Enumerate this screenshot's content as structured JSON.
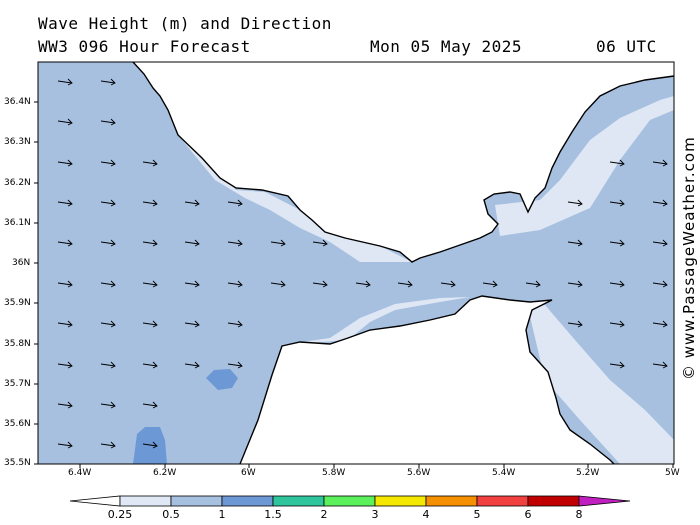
{
  "header": {
    "title": "Wave Height (m) and Direction",
    "model": "WW3 096 Hour Forecast",
    "date": "Mon 05 May 2025",
    "time": "06 UTC"
  },
  "credit": "© www.PassageWeather.com",
  "axes": {
    "lat_labels": [
      "36.4N",
      "36.3N",
      "36.2N",
      "36.1N",
      "36N",
      "35.9N",
      "35.8N",
      "35.7N",
      "35.6N",
      "35.5N"
    ],
    "lon_labels": [
      "6.4W",
      "6.2W",
      "6W",
      "5.8W",
      "5.6W",
      "5.4W",
      "5.2W",
      "5W"
    ]
  },
  "colorbar": {
    "labels": [
      "0.25",
      "0.5",
      "1",
      "1.5",
      "2",
      "3",
      "4",
      "5",
      "6",
      "8"
    ],
    "colors": [
      "#ffffff",
      "#e0e8f5",
      "#a6c0e0",
      "#6d98d6",
      "#2ec49c",
      "#5cf05c",
      "#f5e800",
      "#f59000",
      "#f04040",
      "#c00000",
      "#c020c0"
    ]
  },
  "colors": {
    "land": "#ffffff",
    "sea_low": "#dfe7f4",
    "sea_mid": "#a7c0e0",
    "sea_high": "#6d98d6",
    "coast": "#000000"
  },
  "wave_direction": "east"
}
